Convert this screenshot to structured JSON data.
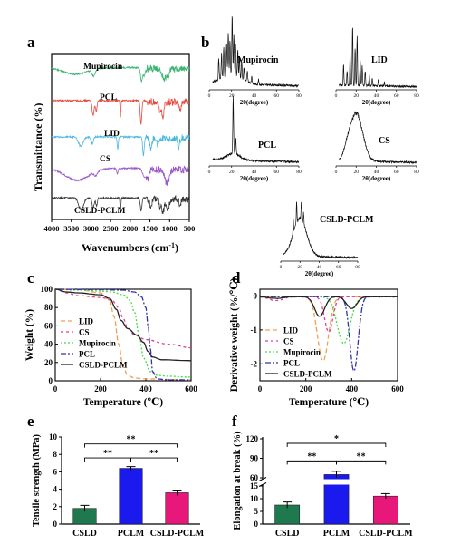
{
  "panels": {
    "a": {
      "letter": "a",
      "xlabel": "Wavenumbers (cm",
      "xlabel_sup": "-1",
      "xlabel_close": ")",
      "ylabel": "Transmittance (%)",
      "labels": [
        "Mupirocin",
        "PCL",
        "LID",
        "CS",
        "CSLD-PCLM"
      ]
    },
    "b": {
      "letter": "b",
      "labels": [
        "Mupirocin",
        "LID",
        "PCL",
        "CS",
        "CSLD-PCLM"
      ],
      "xlabel": "2θ(degree)"
    },
    "c": {
      "letter": "c"
    },
    "d": {
      "letter": "d"
    },
    "e": {
      "letter": "e"
    },
    "f": {
      "letter": "f"
    }
  },
  "chart_data": [
    {
      "panel": "a",
      "type": "line",
      "xlabel": "Wavenumbers (cm-1)",
      "ylabel": "Transmittance (%)",
      "xlim": [
        4000,
        500
      ],
      "x_ticks": [
        4000,
        3500,
        3000,
        2500,
        2000,
        1500,
        1000,
        500
      ],
      "series": [
        {
          "name": "Mupirocin",
          "color": "#3cb371",
          "offset": 0.92,
          "bands": [
            [
              3400,
              300,
              0.25
            ],
            [
              2930,
              40,
              0.25
            ],
            [
              1715,
              25,
              0.5
            ],
            [
              1645,
              25,
              0.3
            ],
            [
              1150,
              40,
              0.4
            ],
            [
              1050,
              40,
              0.3
            ]
          ]
        },
        {
          "name": "PCL",
          "color": "#e8463c",
          "offset": 0.72,
          "bands": [
            [
              2945,
              25,
              0.55
            ],
            [
              2865,
              20,
              0.4
            ],
            [
              2250,
              10,
              0.65
            ],
            [
              1727,
              20,
              0.9
            ],
            [
              1240,
              25,
              0.4
            ],
            [
              1170,
              25,
              0.6
            ],
            [
              730,
              20,
              0.3
            ]
          ]
        },
        {
          "name": "LID",
          "color": "#4bb7e0",
          "offset": 0.5,
          "bands": [
            [
              3260,
              60,
              0.35
            ],
            [
              2970,
              30,
              0.25
            ],
            [
              2320,
              15,
              0.45
            ],
            [
              1665,
              20,
              0.7
            ],
            [
              1480,
              25,
              0.4
            ],
            [
              1300,
              30,
              0.25
            ],
            [
              770,
              20,
              0.35
            ]
          ]
        },
        {
          "name": "CS",
          "color": "#9a55c8",
          "offset": 0.31,
          "bands": [
            [
              3350,
              300,
              0.45
            ],
            [
              2880,
              40,
              0.15
            ],
            [
              2330,
              15,
              0.2
            ],
            [
              1650,
              40,
              0.3
            ],
            [
              1560,
              40,
              0.3
            ],
            [
              1070,
              60,
              0.5
            ]
          ]
        },
        {
          "name": "CSLD-PCLM",
          "color": "#333333",
          "offset": 0.13,
          "bands": [
            [
              3250,
              60,
              0.45
            ],
            [
              2945,
              25,
              0.4
            ],
            [
              2860,
              20,
              0.3
            ],
            [
              2250,
              10,
              0.6
            ],
            [
              1725,
              20,
              0.5
            ],
            [
              1480,
              25,
              0.35
            ],
            [
              1240,
              25,
              0.3
            ],
            [
              1170,
              25,
              0.5
            ],
            [
              1050,
              50,
              0.35
            ],
            [
              730,
              20,
              0.3
            ]
          ]
        }
      ]
    },
    {
      "panel": "b",
      "type": "line",
      "xlabel": "2θ(degree)",
      "subplots": [
        {
          "name": "Mupirocin",
          "xlim": [
            0,
            80
          ],
          "x_ticks": [
            0,
            20,
            40,
            60,
            80
          ],
          "baseline": 0.08,
          "broad": [
            [
              20,
              9,
              0.15
            ]
          ],
          "peaks": [
            [
              8.5,
              0.35
            ],
            [
              11,
              0.4
            ],
            [
              13,
              0.5
            ],
            [
              15.5,
              0.55
            ],
            [
              17,
              0.75
            ],
            [
              18.5,
              0.6
            ],
            [
              20.5,
              1.0
            ],
            [
              22,
              0.7
            ],
            [
              23.5,
              0.55
            ],
            [
              25.5,
              0.45
            ],
            [
              27,
              0.35
            ],
            [
              29,
              0.3
            ],
            [
              31,
              0.22
            ],
            [
              34,
              0.18
            ],
            [
              38,
              0.12
            ],
            [
              44,
              0.08
            ]
          ]
        },
        {
          "name": "LID",
          "xlim": [
            0,
            80
          ],
          "x_ticks": [
            0,
            20,
            40,
            60,
            80
          ],
          "baseline": 0.05,
          "broad": [],
          "peaks": [
            [
              7.5,
              0.35
            ],
            [
              11,
              0.25
            ],
            [
              14,
              0.55
            ],
            [
              16.5,
              1.0
            ],
            [
              19,
              0.65
            ],
            [
              21,
              0.85
            ],
            [
              24,
              0.45
            ],
            [
              26,
              0.35
            ],
            [
              29,
              0.25
            ],
            [
              33,
              0.18
            ],
            [
              36,
              0.12
            ],
            [
              42,
              0.1
            ],
            [
              48,
              0.07
            ]
          ]
        },
        {
          "name": "PCL",
          "xlim": [
            0,
            80
          ],
          "x_ticks": [
            0,
            20,
            40,
            60,
            80
          ],
          "baseline": 0.08,
          "broad": [
            [
              21.4,
              6,
              0.12
            ]
          ],
          "peaks": [
            [
              21.4,
              1.0
            ],
            [
              23.7,
              0.28
            ]
          ]
        },
        {
          "name": "CS",
          "xlim": [
            0,
            80
          ],
          "x_ticks": [
            0,
            20,
            40,
            60,
            80
          ],
          "baseline": 0.06,
          "broad": [
            [
              20,
              6.5,
              0.85
            ],
            [
              11,
              3,
              0.1
            ]
          ],
          "peaks": []
        },
        {
          "name": "CSLD-PCLM",
          "xlim": [
            0,
            80
          ],
          "x_ticks": [
            0,
            20,
            40,
            60,
            80
          ],
          "baseline": 0.06,
          "broad": [
            [
              20,
              7,
              0.65
            ]
          ],
          "peaks": [
            [
              13,
              0.25
            ],
            [
              16.5,
              0.35
            ],
            [
              21.4,
              0.32
            ],
            [
              23.7,
              0.2
            ]
          ]
        }
      ]
    },
    {
      "panel": "c",
      "type": "line",
      "xlabel": "Temperature (℃)",
      "ylabel": "Weight (%)",
      "xlim": [
        0,
        600
      ],
      "ylim": [
        0,
        100
      ],
      "x_ticks": [
        0,
        200,
        400,
        600
      ],
      "y_ticks": [
        0,
        20,
        40,
        60,
        80,
        100
      ],
      "legend": "lower-left",
      "series": [
        {
          "name": "LID",
          "color": "#f0a050",
          "dash": "5,3",
          "x": [
            0,
            100,
            200,
            240,
            260,
            280,
            300,
            320,
            350,
            400,
            600
          ],
          "y": [
            100,
            99.5,
            96,
            88,
            70,
            40,
            15,
            6,
            3,
            2,
            1
          ]
        },
        {
          "name": "CS",
          "color": "#e83a8c",
          "dash": "3,3",
          "x": [
            0,
            50,
            100,
            200,
            250,
            280,
            300,
            320,
            350,
            400,
            500,
            600
          ],
          "y": [
            100,
            96,
            93,
            91,
            88,
            80,
            68,
            58,
            50,
            45,
            40,
            36
          ]
        },
        {
          "name": "Mupirocin",
          "color": "#44dd44",
          "dash": "2,2",
          "x": [
            0,
            100,
            200,
            250,
            300,
            330,
            350,
            370,
            390,
            420,
            450,
            500,
            600
          ],
          "y": [
            100,
            99,
            98,
            97,
            94,
            88,
            75,
            50,
            25,
            10,
            6,
            5,
            4
          ]
        },
        {
          "name": "PCL",
          "color": "#3434a8",
          "dash": "6,2,2,2",
          "x": [
            0,
            200,
            300,
            350,
            380,
            400,
            410,
            420,
            430,
            450,
            500,
            600
          ],
          "y": [
            100,
            99.5,
            99,
            97,
            92,
            80,
            60,
            35,
            10,
            2,
            1,
            1
          ]
        },
        {
          "name": "CSLD-PCLM",
          "color": "#222222",
          "dash": "",
          "x": [
            0,
            50,
            100,
            200,
            240,
            270,
            290,
            320,
            360,
            390,
            410,
            430,
            470,
            600
          ],
          "y": [
            100,
            97,
            96,
            94,
            90,
            78,
            66,
            57,
            50,
            42,
            32,
            26,
            23,
            22
          ]
        }
      ],
      "legend_entries": [
        "LID",
        "CS",
        "Mupirocin",
        "PCL",
        "CSLD-PCLM"
      ]
    },
    {
      "panel": "d",
      "type": "line",
      "xlabel": "Temperature (℃)",
      "ylabel": "Derivative weight (%/℃)",
      "xlim": [
        0,
        600
      ],
      "ylim": [
        -2.5,
        0.2
      ],
      "x_ticks": [
        0,
        200,
        400,
        600
      ],
      "y_ticks": [
        0,
        -1,
        -2
      ],
      "legend": "lower-left",
      "series": [
        {
          "name": "LID",
          "color": "#f0a050",
          "dash": "5,3",
          "peaks": [
            [
              275,
              24,
              1.9
            ]
          ]
        },
        {
          "name": "CS",
          "color": "#e83a8c",
          "dash": "3,3",
          "peaks": [
            [
              70,
              30,
              0.12
            ],
            [
              300,
              18,
              1.05
            ]
          ]
        },
        {
          "name": "Mupirocin",
          "color": "#44dd44",
          "dash": "2,2",
          "peaks": [
            [
              365,
              28,
              1.38
            ]
          ]
        },
        {
          "name": "PCL",
          "color": "#3434a8",
          "dash": "6,2,2,2",
          "peaks": [
            [
              410,
              18,
              2.2
            ]
          ]
        },
        {
          "name": "CSLD-PCLM",
          "color": "#222222",
          "dash": "",
          "peaks": [
            [
              260,
              22,
              0.58
            ],
            [
              400,
              22,
              0.35
            ],
            [
              70,
              30,
              0.05
            ]
          ]
        }
      ],
      "legend_entries": [
        "LID",
        "CS",
        "Mupirocin",
        "PCL",
        "CSLD-PCLM"
      ]
    },
    {
      "panel": "e",
      "type": "bar",
      "ylabel": "Tensile strength (MPa)",
      "ylim": [
        0,
        10
      ],
      "y_ticks": [
        0,
        2,
        4,
        6,
        8,
        10
      ],
      "categories": [
        "CSLD",
        "PCLM",
        "CSLD-PCLM"
      ],
      "values": [
        1.8,
        6.4,
        3.6
      ],
      "errors": [
        0.35,
        0.2,
        0.3
      ],
      "colors": [
        "#1e7a4e",
        "#1a1aee",
        "#e8187a"
      ],
      "significance": [
        {
          "pair": [
            0,
            2
          ],
          "label": "**"
        },
        {
          "pair": [
            0,
            1
          ],
          "label": "**"
        },
        {
          "pair": [
            1,
            2
          ],
          "label": "**"
        }
      ]
    },
    {
      "panel": "f",
      "type": "bar",
      "ylabel": "Elongation at break (%)",
      "axis_break": [
        15,
        60
      ],
      "y_ticks": [
        0,
        5,
        10,
        15,
        60,
        90,
        120
      ],
      "categories": [
        "CSLD",
        "PCLM",
        "CSLD-PCLM"
      ],
      "values": [
        7.5,
        65,
        11
      ],
      "errors": [
        1.2,
        5,
        1
      ],
      "colors": [
        "#1e7a4e",
        "#1a1aee",
        "#e8187a"
      ],
      "significance": [
        {
          "pair": [
            0,
            2
          ],
          "label": "*"
        },
        {
          "pair": [
            0,
            1
          ],
          "label": "**"
        },
        {
          "pair": [
            1,
            2
          ],
          "label": "**"
        }
      ]
    }
  ]
}
